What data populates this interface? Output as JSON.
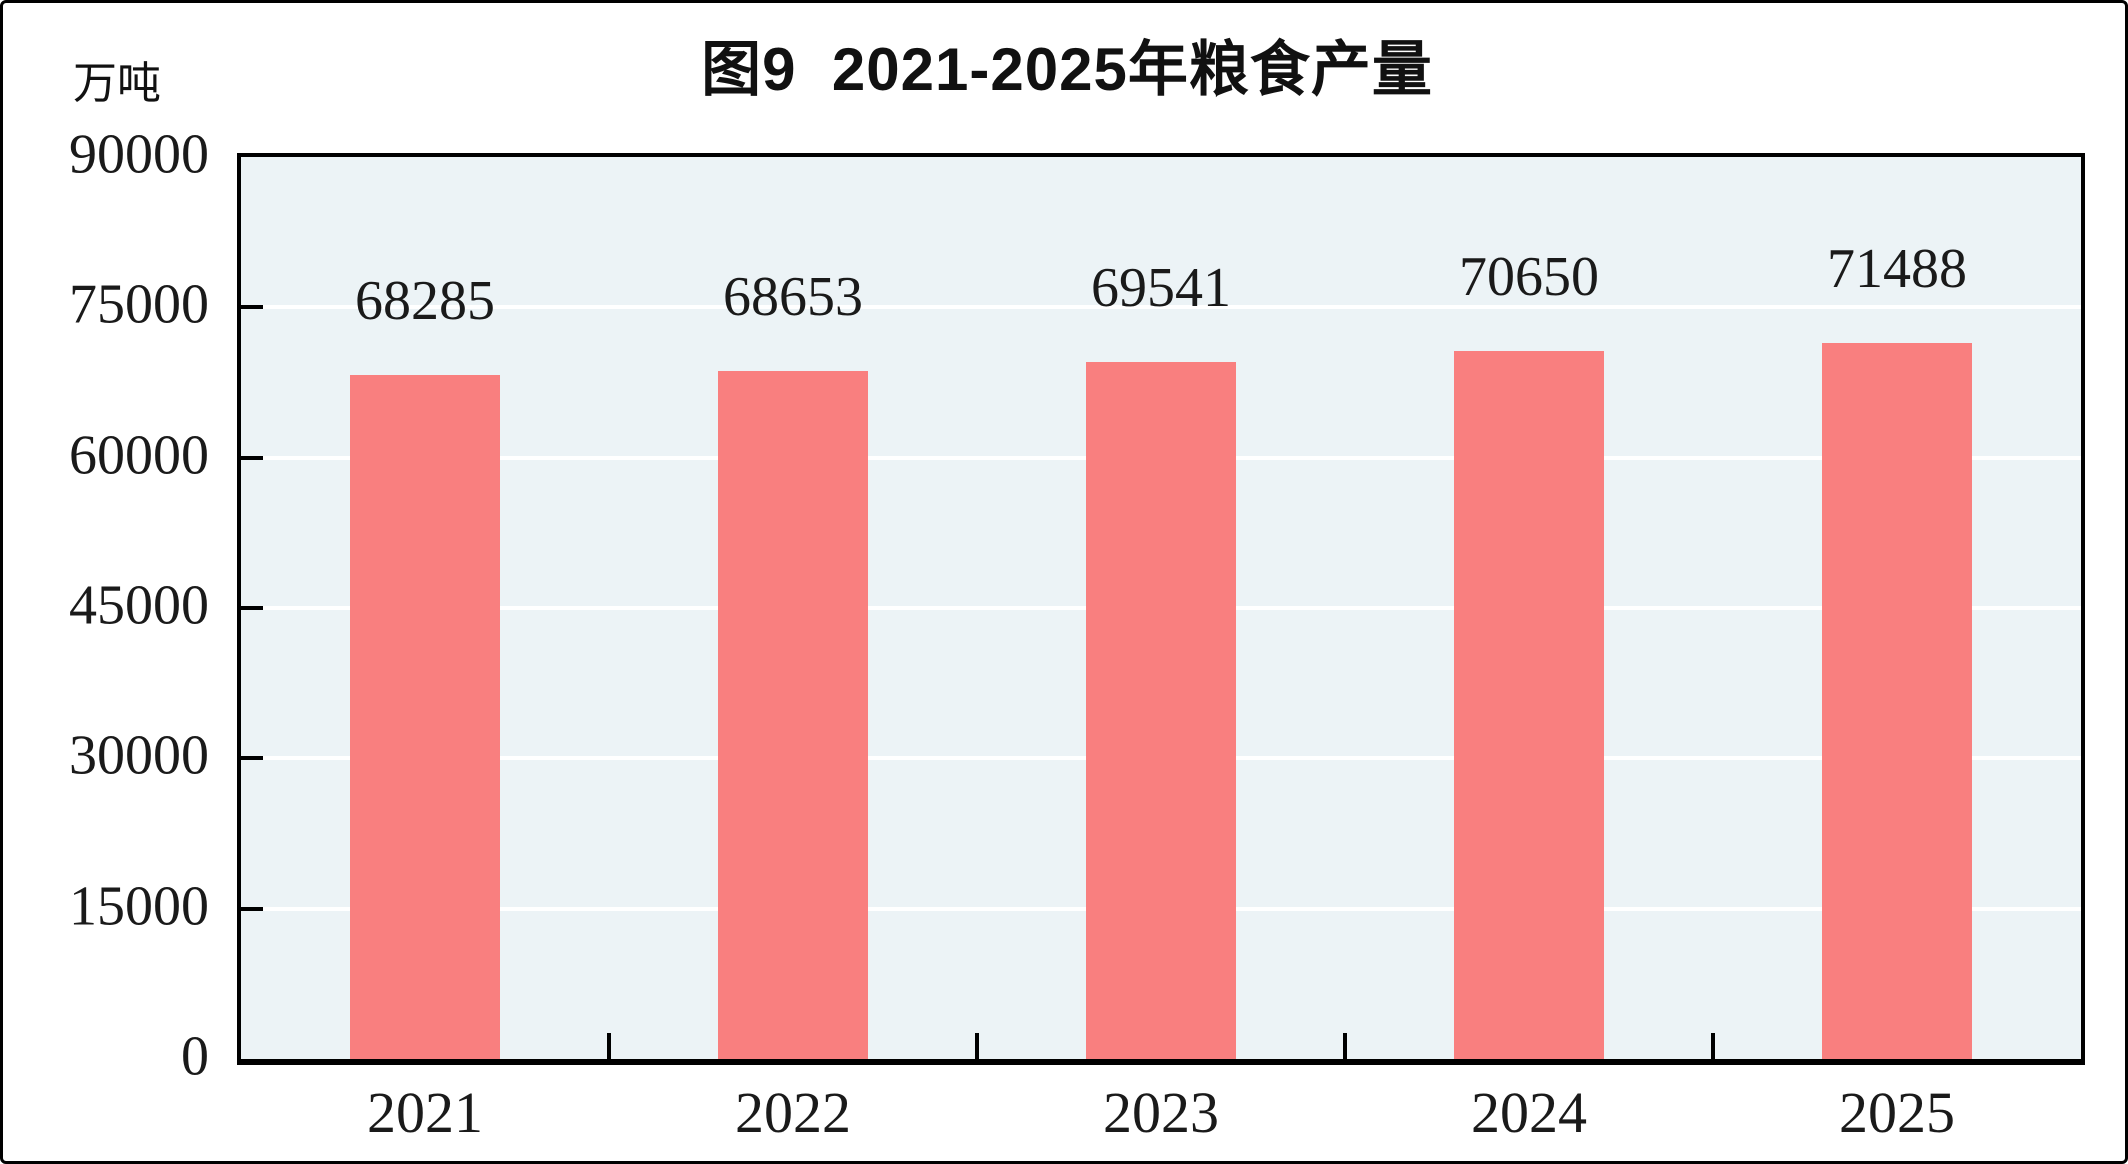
{
  "figure": {
    "title": "图9  2021-2025年粮食产量",
    "unit_label": "万吨"
  },
  "chart_data": {
    "type": "bar",
    "title": "图9  2021-2025年粮食产量",
    "ylabel_unit": "万吨",
    "categories": [
      "2021",
      "2022",
      "2023",
      "2024",
      "2025"
    ],
    "series": [
      {
        "name": "粮食产量",
        "values": [
          68285,
          68653,
          69541,
          70650,
          71488
        ]
      }
    ],
    "value_labels": [
      "68285",
      "68653",
      "69541",
      "70650",
      "71488"
    ],
    "ylim": [
      0,
      90000
    ],
    "yticks": [
      0,
      15000,
      30000,
      45000,
      60000,
      75000,
      90000
    ],
    "grid": true,
    "legend": "none",
    "colors": {
      "bar_fill": "#F97F7F",
      "plot_background": "#ECF3F6",
      "gridline": "#FFFFFF",
      "axis": "#000000",
      "text": "#1a1a1a"
    }
  }
}
